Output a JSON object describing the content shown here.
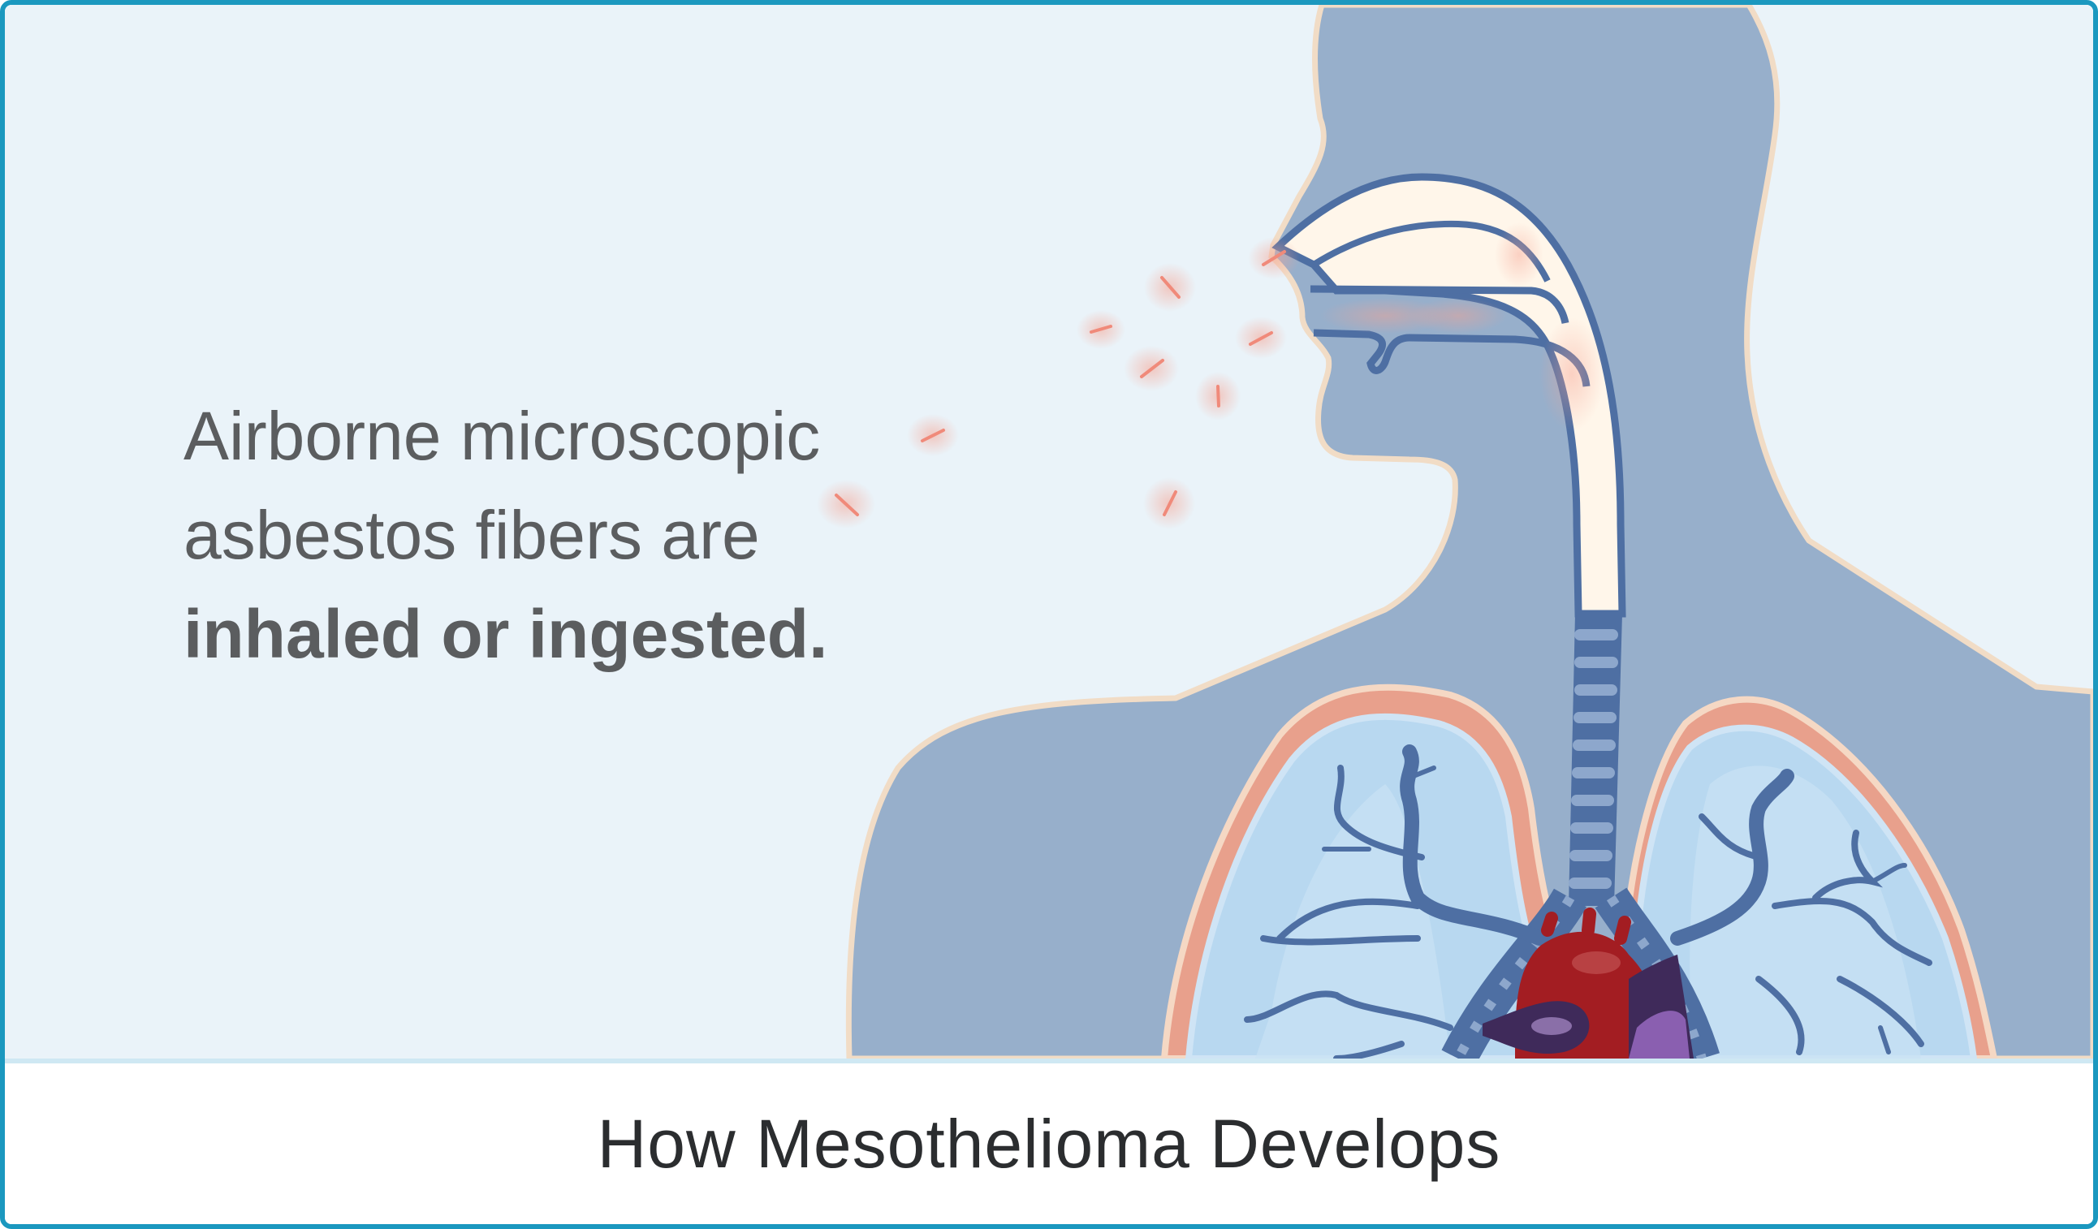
{
  "illustration": {
    "caption_lines": [
      "Airborne microscopic",
      "asbestos fibers are",
      "inhaled or ingested."
    ]
  },
  "footer": {
    "title": "How Mesothelioma Develops"
  },
  "colors": {
    "border": "#1b98bf",
    "background": "#eaf3f9",
    "body": "#97afcb",
    "airway": "#4e6fa3",
    "lung": "#b8d8f0",
    "heart": "#a31d22",
    "fiber": "#f08a7a"
  }
}
